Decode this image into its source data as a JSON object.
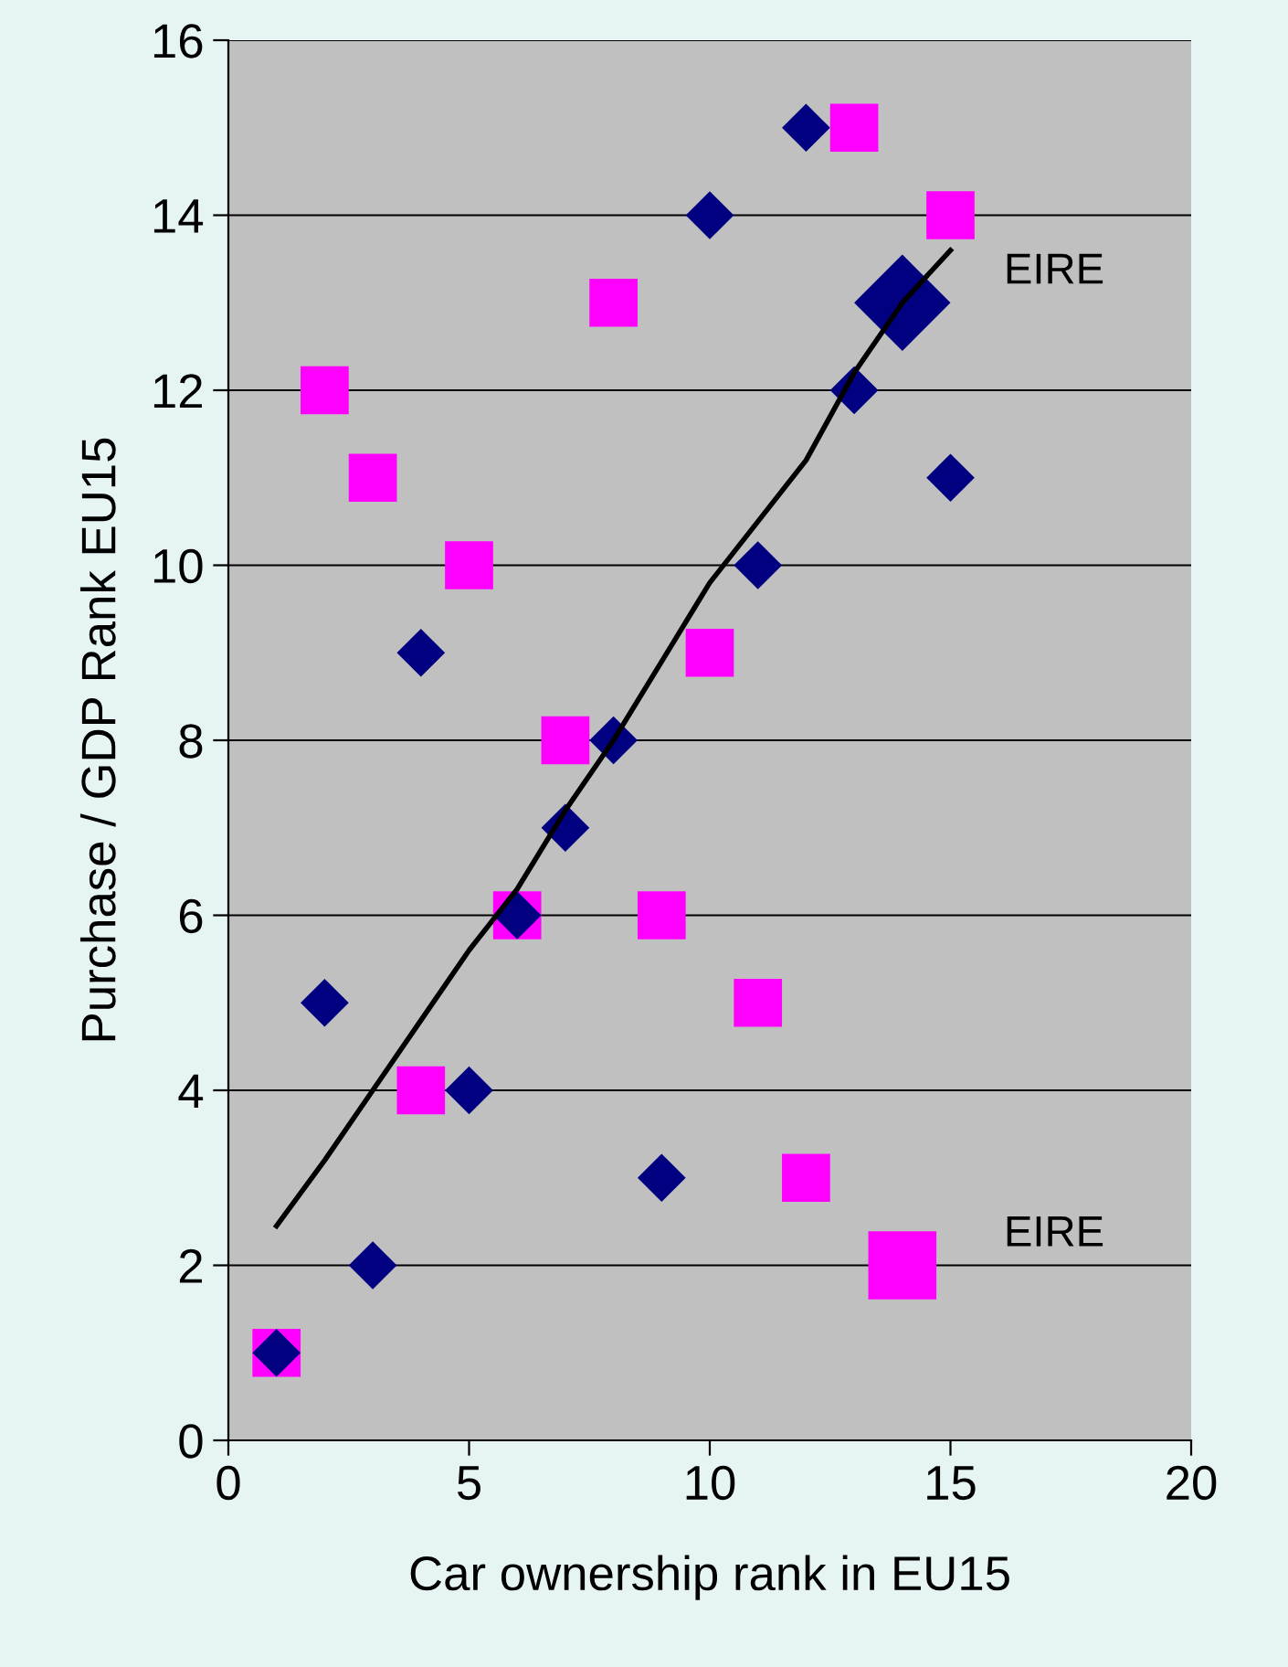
{
  "chart_data": {
    "type": "scatter",
    "xlabel": "Car ownership rank in EU15",
    "ylabel": "Purchase / GDP Rank EU15",
    "xlim": [
      0,
      20
    ],
    "xticks": [
      0,
      5,
      10,
      15,
      20
    ],
    "ylim": [
      0,
      16
    ],
    "yticks": [
      0,
      2,
      4,
      6,
      8,
      10,
      12,
      14,
      16
    ],
    "grid": "y",
    "legend": false,
    "series": [
      {
        "marker": "diamond",
        "color": "#000080",
        "x": [
          1,
          2,
          3,
          4,
          5,
          6,
          7,
          8,
          9,
          10,
          11,
          12,
          13,
          14,
          15
        ],
        "values": [
          1,
          5,
          2,
          9,
          4,
          6,
          7,
          8,
          3,
          14,
          10,
          15,
          12,
          null,
          11
        ]
      },
      {
        "marker": "diamond",
        "color": "#000080",
        "x": [
          14
        ],
        "values": [
          13
        ]
      },
      {
        "marker": "square",
        "color": "#ff00ff",
        "x": [
          1,
          2,
          3,
          4,
          5,
          6,
          7,
          8,
          9,
          10,
          11,
          12,
          13,
          14,
          15
        ],
        "values": [
          1,
          12,
          11,
          4,
          10,
          6,
          8,
          13,
          6,
          9,
          5,
          3,
          15,
          null,
          14
        ]
      },
      {
        "marker": "square",
        "color": "#ff00ff",
        "x": [
          14
        ],
        "values": [
          2
        ]
      },
      {
        "type": "line",
        "color": "#000000",
        "x": [
          1,
          2,
          3,
          4,
          5,
          6,
          7,
          8,
          9,
          10,
          11,
          12,
          13,
          14,
          15
        ],
        "values": [
          2.45,
          3.2,
          4.0,
          4.8,
          5.6,
          6.3,
          7.2,
          8.0,
          8.9,
          9.8,
          10.5,
          11.2,
          12.2,
          13.0,
          13.6
        ]
      }
    ],
    "annotations": [
      {
        "text": "EIRE",
        "x": 14,
        "y": 13
      },
      {
        "text": "EIRE",
        "x": 14,
        "y": 2
      }
    ]
  }
}
